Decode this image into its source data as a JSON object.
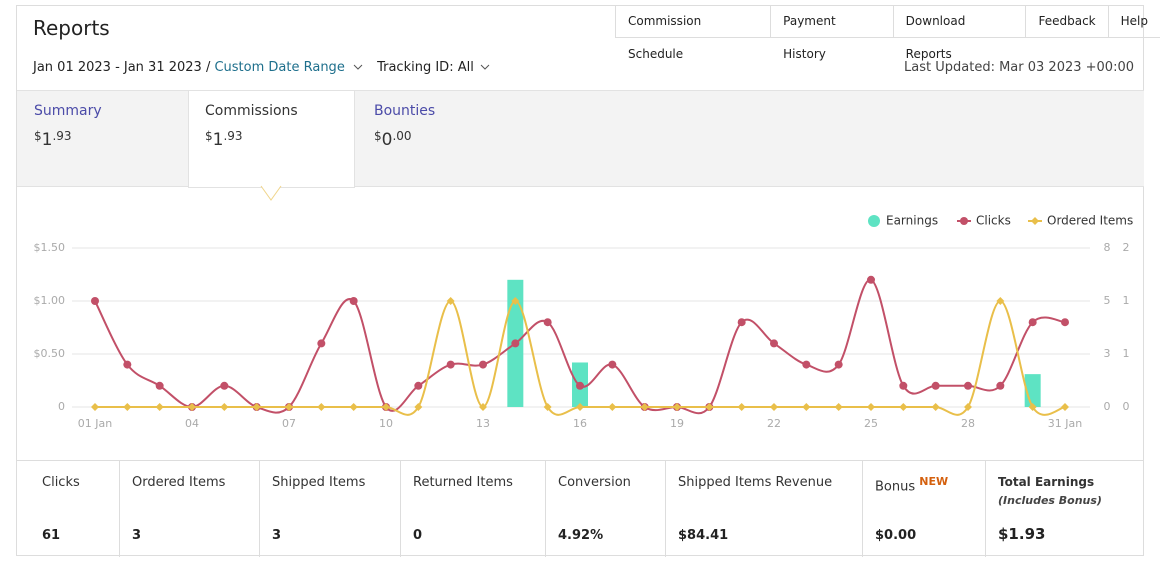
{
  "header": {
    "title": "Reports",
    "nav": [
      "Commission Schedule",
      "Payment History",
      "Download Reports",
      "Feedback",
      "Help"
    ]
  },
  "filters": {
    "date_range": "Jan 01 2023 - Jan 31 2023 /",
    "date_range_link": "Custom Date Range",
    "tracking": "Tracking ID: All",
    "last_updated": "Last Updated: Mar 03 2023 +00:00"
  },
  "tabs": [
    {
      "label": "Summary",
      "currency": "$",
      "whole": "1",
      "fraction": ".93"
    },
    {
      "label": "Commissions",
      "currency": "$",
      "whole": "1",
      "fraction": ".93"
    },
    {
      "label": "Bounties",
      "currency": "$",
      "whole": "0",
      "fraction": ".00"
    }
  ],
  "chart_data": {
    "type": "combo",
    "legend": "top-right",
    "categories": [
      "01 Jan",
      null,
      null,
      "04",
      null,
      null,
      "07",
      null,
      null,
      "10",
      null,
      null,
      "13",
      null,
      null,
      "16",
      null,
      null,
      "19",
      null,
      null,
      "22",
      null,
      null,
      "25",
      null,
      null,
      "28",
      null,
      null,
      "31 Jan"
    ],
    "series": [
      {
        "name": "Earnings",
        "type": "bar",
        "axis": "y",
        "color": "#5ee3c3",
        "values": [
          0,
          0,
          0,
          0,
          0,
          0,
          0,
          0,
          0,
          0,
          0,
          0,
          0,
          1.2,
          0,
          0.42,
          0,
          0,
          0,
          0,
          0,
          0,
          0,
          0,
          0,
          0,
          0,
          0,
          0,
          0.31,
          0
        ]
      },
      {
        "name": "Clicks",
        "type": "line",
        "axis": "y2",
        "color": "#c25068",
        "values": [
          5,
          2,
          1,
          0,
          1,
          0,
          0,
          3,
          5,
          0,
          1,
          2,
          2,
          3,
          4,
          1,
          2,
          0,
          0,
          0,
          4,
          3,
          2,
          2,
          6,
          1,
          1,
          1,
          1,
          4,
          4
        ]
      },
      {
        "name": "Ordered Items",
        "type": "line",
        "axis": "y3",
        "color": "#e9bf4a",
        "values": [
          0,
          0,
          0,
          0,
          0,
          0,
          0,
          0,
          0,
          0,
          0,
          1,
          0,
          1,
          0,
          0,
          0,
          0,
          0,
          0,
          0,
          0,
          0,
          0,
          0,
          0,
          0,
          0,
          1,
          0,
          0
        ]
      }
    ],
    "ylim": [
      0,
      1.5
    ],
    "yticks": [
      0,
      {
        "value": 0.5,
        "label": "$0.50"
      },
      {
        "value": 1,
        "label": "$1.00"
      },
      {
        "value": 1.5,
        "label": "$1.50"
      }
    ],
    "y2lim": [
      0,
      7.5
    ],
    "y2ticks": [
      0,
      {
        "value": 2.5,
        "label": "3"
      },
      5,
      {
        "value": 7.5,
        "label": "8"
      }
    ],
    "y3lim": [
      0,
      1.5
    ],
    "y3ticks": [
      0,
      {
        "value": 0.5,
        "label": "1"
      },
      1,
      {
        "value": 1.5,
        "label": "2"
      }
    ],
    "grid": true
  },
  "stats": [
    {
      "label": "Clicks",
      "value": "61"
    },
    {
      "label": "Ordered Items",
      "value": "3"
    },
    {
      "label": "Shipped Items",
      "value": "3"
    },
    {
      "label": "Returned Items",
      "value": "0"
    },
    {
      "label": "Conversion",
      "value": "4.92%"
    },
    {
      "label": "Shipped Items Revenue",
      "value": "$84.41"
    },
    {
      "label": "Bonus",
      "badge": "NEW",
      "value": "$0.00"
    },
    {
      "label": "Total Earnings",
      "note": "(Includes Bonus)",
      "value": "$1.93"
    }
  ]
}
